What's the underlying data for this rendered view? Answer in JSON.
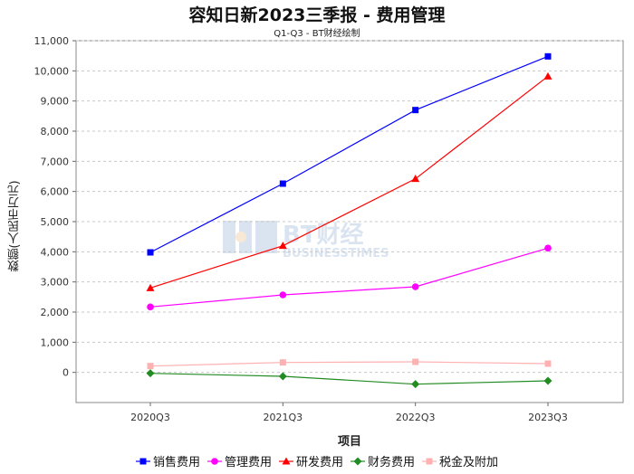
{
  "chart_data": {
    "type": "line",
    "title": "容知日新2023三季报 - 费用管理",
    "subtitle": "Q1-Q3 - BT财经绘制",
    "xlabel": "项目",
    "ylabel": "数额(人民币万元)",
    "categories": [
      "2020Q3",
      "2021Q3",
      "2022Q3",
      "2023Q3"
    ],
    "ylim": [
      -1000,
      11000
    ],
    "yticks": [
      0,
      1000,
      2000,
      3000,
      4000,
      5000,
      6000,
      7000,
      8000,
      9000,
      10000,
      11000
    ],
    "ytick_labels": [
      "0",
      "1,000",
      "2,000",
      "3,000",
      "4,000",
      "5,000",
      "6,000",
      "7,000",
      "8,000",
      "9,000",
      "10,000",
      "11,000"
    ],
    "grid": true,
    "legend_position": "bottom",
    "watermark": "BT财经 BUSINESSTIMES",
    "series": [
      {
        "name": "销售费用",
        "color": "#0000ff",
        "marker": "square",
        "values": [
          3980,
          6260,
          8700,
          10480
        ]
      },
      {
        "name": "管理费用",
        "color": "#ff00ff",
        "marker": "circle",
        "values": [
          2170,
          2570,
          2840,
          4120
        ]
      },
      {
        "name": "研发费用",
        "color": "#ff0000",
        "marker": "triangle",
        "values": [
          2800,
          4200,
          6420,
          9820
        ]
      },
      {
        "name": "财务费用",
        "color": "#228b22",
        "marker": "diamond",
        "values": [
          -30,
          -130,
          -390,
          -280
        ]
      },
      {
        "name": "税金及附加",
        "color": "#ffb0b0",
        "marker": "square",
        "values": [
          210,
          330,
          350,
          290
        ]
      }
    ]
  }
}
